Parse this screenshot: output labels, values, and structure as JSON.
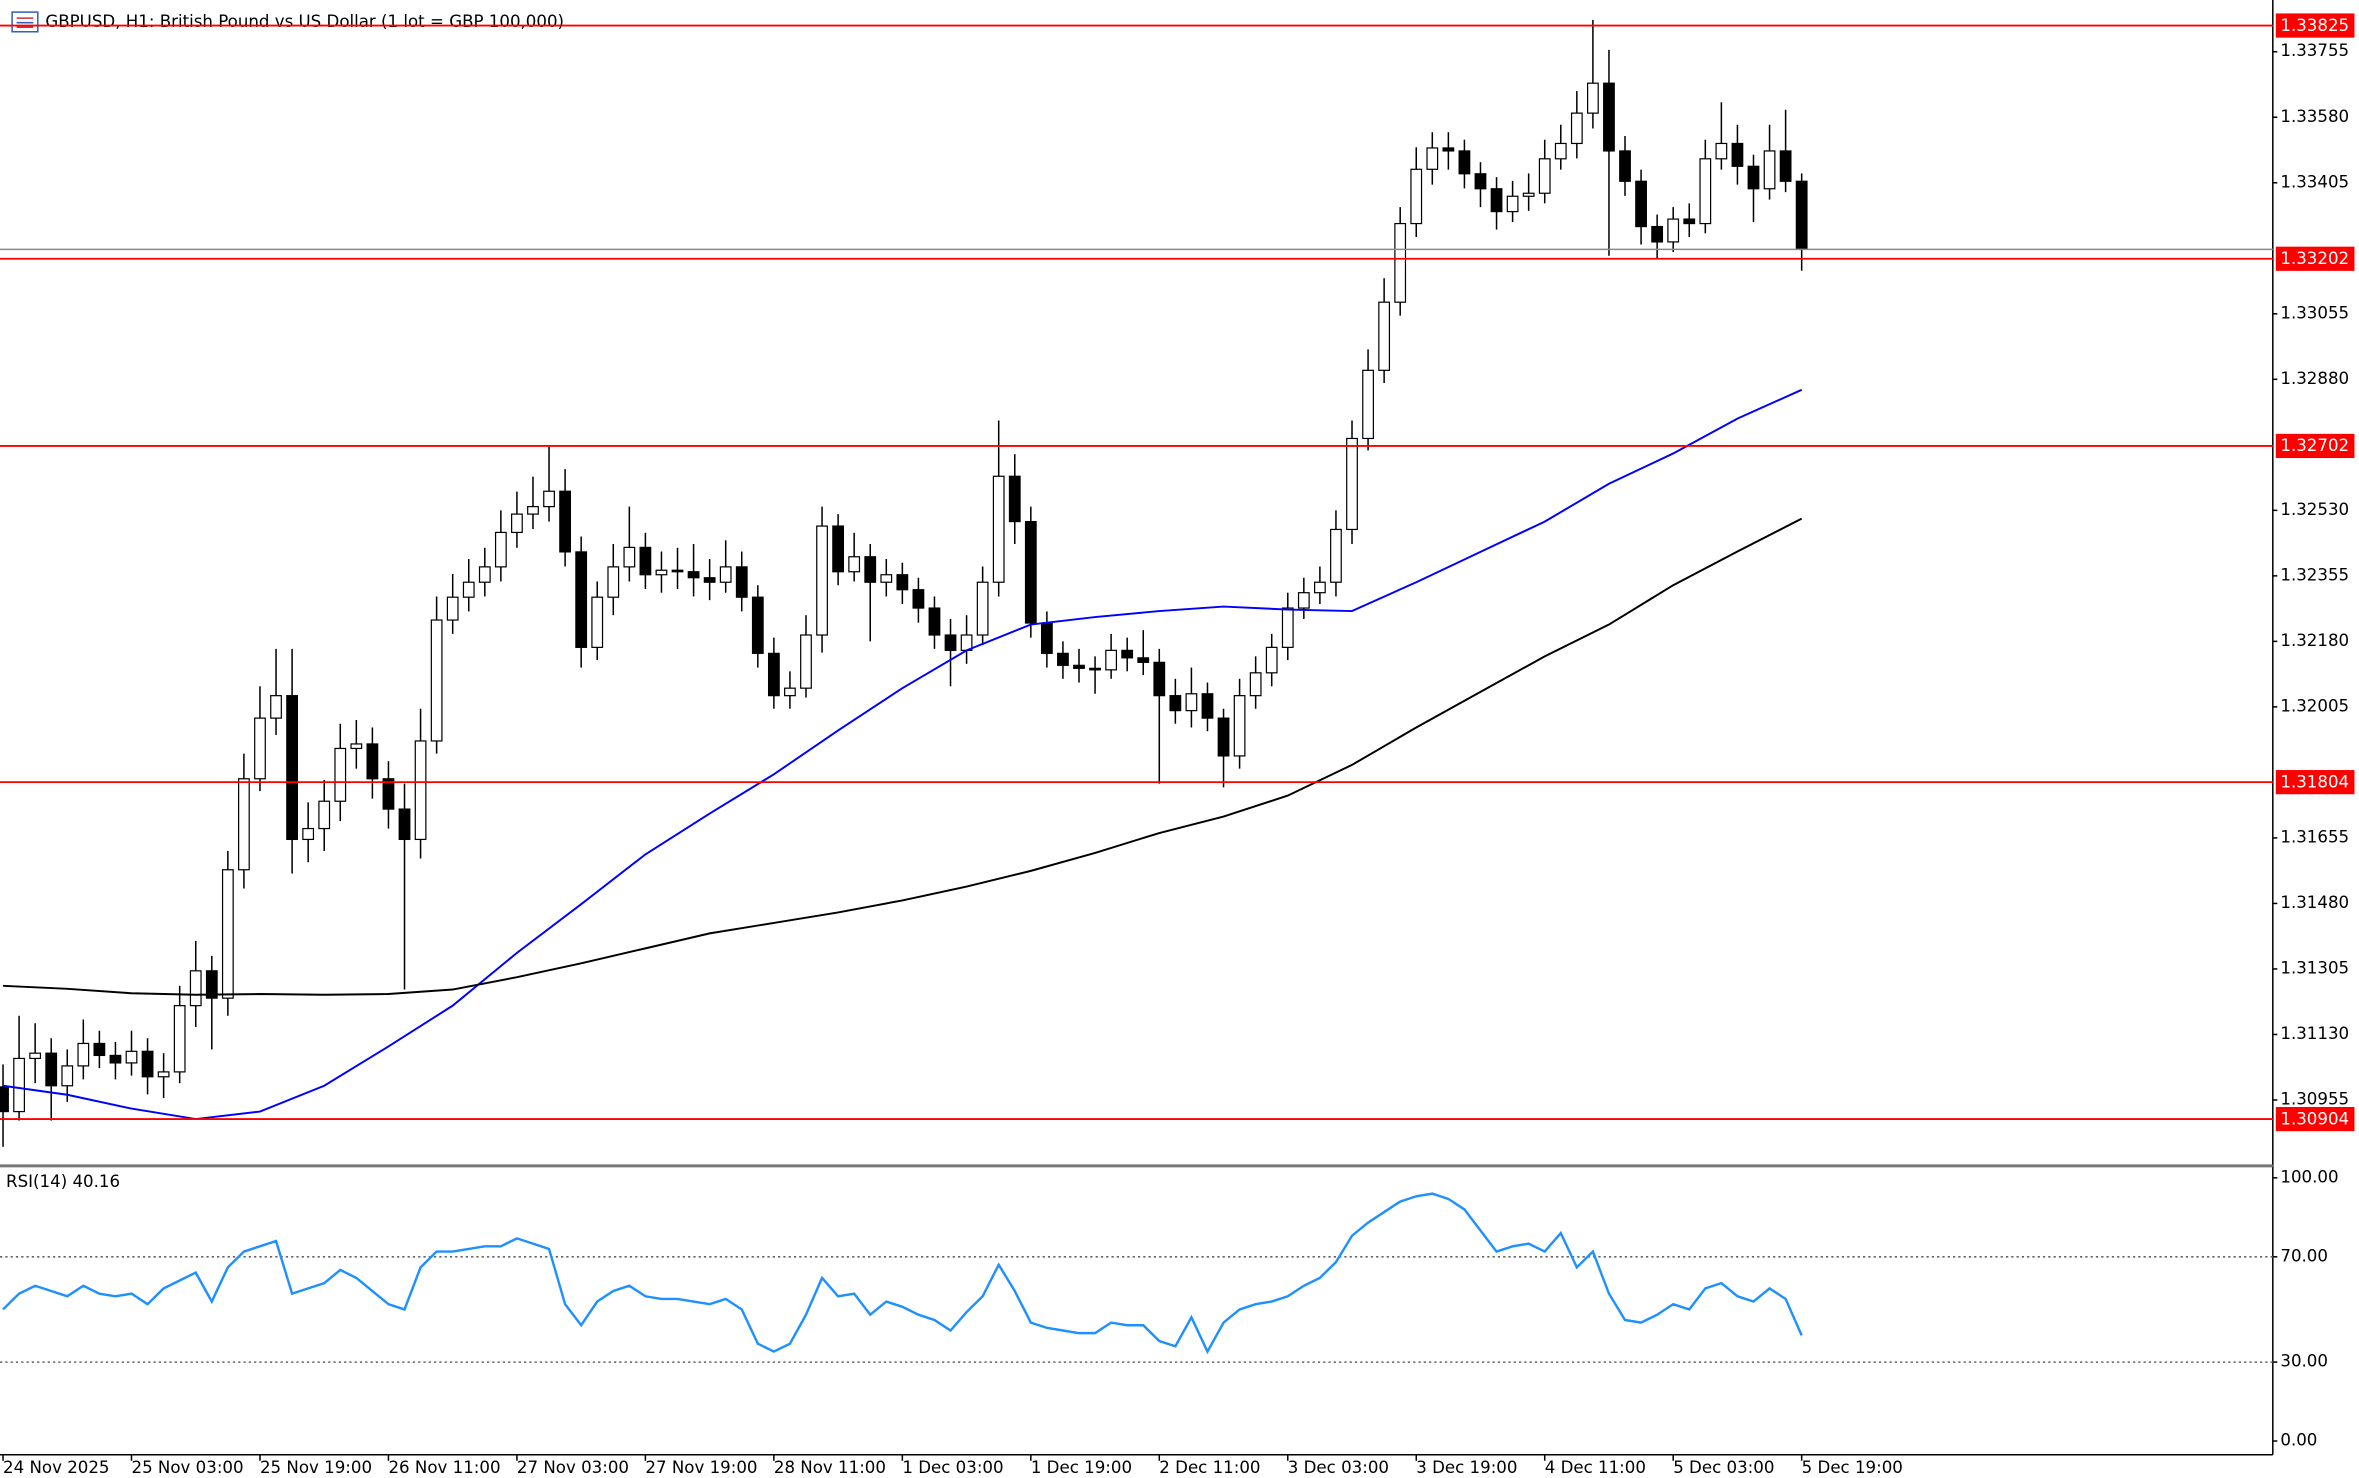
{
  "chart_data": [
    {
      "type": "candlestick",
      "title": "GBPUSD, H1:  British Pound vs US Dollar (1 lot = GBP 100,000)",
      "categories": [
        "24 Nov 2025",
        null,
        null,
        null,
        null,
        null,
        null,
        null,
        "25 Nov 03:00",
        null,
        null,
        null,
        null,
        null,
        null,
        null,
        "25 Nov 19:00",
        null,
        null,
        null,
        null,
        null,
        null,
        null,
        "26 Nov 11:00",
        null,
        null,
        null,
        null,
        null,
        null,
        null,
        "27 Nov 03:00",
        null,
        null,
        null,
        null,
        null,
        null,
        null,
        "27 Nov 19:00",
        null,
        null,
        null,
        null,
        null,
        null,
        null,
        "28 Nov 11:00",
        null,
        null,
        null,
        null,
        null,
        null,
        null,
        "1 Dec 03:00",
        null,
        null,
        null,
        null,
        null,
        null,
        null,
        "1 Dec 19:00",
        null,
        null,
        null,
        null,
        null,
        null,
        null,
        "2 Dec 11:00",
        null,
        null,
        null,
        null,
        null,
        null,
        null,
        "3 Dec 03:00",
        null,
        null,
        null,
        null,
        null,
        null,
        null,
        "3 Dec 19:00",
        null,
        null,
        null,
        null,
        null,
        null,
        null,
        "4 Dec 11:00",
        null,
        null,
        null,
        null,
        null,
        null,
        null,
        "5 Dec 03:00",
        null,
        null,
        null,
        null,
        null,
        null,
        null,
        "5 Dec 19:00"
      ],
      "open": [
        1.3099,
        1.30924,
        1.31066,
        1.3108,
        1.30993,
        1.31046,
        1.31106,
        1.31074,
        1.31054,
        1.31085,
        1.31017,
        1.3103,
        1.31207,
        1.313,
        1.31227,
        1.3157,
        1.31813,
        1.31975,
        1.32035,
        1.31651,
        1.3168,
        1.31753,
        1.31894,
        1.31906,
        1.31813,
        1.31732,
        1.31651,
        1.31914,
        1.32237,
        1.32298,
        1.32338,
        1.32379,
        1.32471,
        1.3252,
        1.3254,
        1.32581,
        1.32419,
        1.32164,
        1.32298,
        1.32379,
        1.32431,
        1.32358,
        1.3237,
        1.32366,
        1.3235,
        1.32338,
        1.32379,
        1.32298,
        1.32148,
        1.32035,
        1.32055,
        1.32197,
        1.32488,
        1.32366,
        1.32406,
        1.32338,
        1.32358,
        1.32318,
        1.32269,
        1.32197,
        1.32156,
        1.32197,
        1.32338,
        1.32621,
        1.325,
        1.32229,
        1.32148,
        1.32116,
        1.32108,
        1.32104,
        1.32156,
        1.32136,
        1.32124,
        1.32035,
        1.31995,
        1.3204,
        1.31975,
        1.31874,
        1.32035,
        1.32096,
        1.32164,
        1.32269,
        1.3231,
        1.32338,
        1.32479,
        1.32722,
        1.32904,
        1.33086,
        1.33296,
        1.33441,
        1.33498,
        1.3349,
        1.33429,
        1.33389,
        1.33328,
        1.33369,
        1.33377,
        1.33469,
        1.3351,
        1.33591,
        1.33671,
        1.3349,
        1.33409,
        1.33288,
        1.33247,
        1.33308,
        1.33296,
        1.33469,
        1.3351,
        1.33449,
        1.33389,
        1.3349,
        1.33409
      ],
      "high": [
        1.3105,
        1.3118,
        1.3116,
        1.3112,
        1.3109,
        1.3117,
        1.3114,
        1.3111,
        1.3114,
        1.3112,
        1.3108,
        1.3126,
        1.3138,
        1.3134,
        1.3162,
        1.3188,
        1.3206,
        1.3216,
        1.3216,
        1.3175,
        1.3181,
        1.3196,
        1.3197,
        1.3195,
        1.3186,
        1.318,
        1.32,
        1.323,
        1.3236,
        1.324,
        1.3243,
        1.3253,
        1.3258,
        1.3262,
        1.327,
        1.3264,
        1.3246,
        1.3234,
        1.3244,
        1.3254,
        1.3247,
        1.3242,
        1.3243,
        1.3244,
        1.324,
        1.3245,
        1.3242,
        1.3233,
        1.3219,
        1.321,
        1.3225,
        1.3254,
        1.3252,
        1.3247,
        1.3244,
        1.324,
        1.3239,
        1.3235,
        1.323,
        1.3224,
        1.3225,
        1.3238,
        1.3277,
        1.3268,
        1.3254,
        1.3226,
        1.3218,
        1.3216,
        1.3214,
        1.322,
        1.3219,
        1.3221,
        1.3216,
        1.3208,
        1.3211,
        1.3207,
        1.32,
        1.3208,
        1.3214,
        1.322,
        1.3231,
        1.3235,
        1.3238,
        1.3253,
        1.3277,
        1.3296,
        1.3315,
        1.3334,
        1.335,
        1.3354,
        1.3354,
        1.3352,
        1.3346,
        1.3342,
        1.3341,
        1.3343,
        1.3352,
        1.3356,
        1.3365,
        1.3384,
        1.3376,
        1.3353,
        1.3344,
        1.3332,
        1.3334,
        1.3335,
        1.3352,
        1.3362,
        1.3356,
        1.3348,
        1.3356,
        1.336,
        1.3343
      ],
      "low": [
        1.3083,
        1.309,
        1.31,
        1.309,
        1.3095,
        1.3101,
        1.3104,
        1.3101,
        1.3102,
        1.3097,
        1.3096,
        1.31,
        1.3115,
        1.3109,
        1.3118,
        1.3152,
        1.3178,
        1.3193,
        1.3156,
        1.3159,
        1.3162,
        1.317,
        1.3184,
        1.3176,
        1.3168,
        1.3125,
        1.316,
        1.3188,
        1.322,
        1.3226,
        1.323,
        1.3234,
        1.3243,
        1.3248,
        1.325,
        1.3238,
        1.3211,
        1.3213,
        1.3225,
        1.3234,
        1.3232,
        1.3231,
        1.3232,
        1.323,
        1.3229,
        1.3231,
        1.3226,
        1.3211,
        1.32,
        1.32,
        1.3203,
        1.3215,
        1.3233,
        1.3234,
        1.3218,
        1.323,
        1.3228,
        1.3223,
        1.3216,
        1.3206,
        1.3212,
        1.3217,
        1.323,
        1.3244,
        1.3219,
        1.3211,
        1.3208,
        1.3207,
        1.3204,
        1.3208,
        1.321,
        1.3209,
        1.318,
        1.3196,
        1.3195,
        1.3194,
        1.3179,
        1.3184,
        1.32,
        1.3206,
        1.3213,
        1.3224,
        1.3228,
        1.323,
        1.3244,
        1.3269,
        1.3287,
        1.3305,
        1.3326,
        1.334,
        1.3344,
        1.3339,
        1.3334,
        1.3328,
        1.333,
        1.3333,
        1.3335,
        1.3344,
        1.3347,
        1.3355,
        1.3321,
        1.3337,
        1.3324,
        1.332,
        1.3322,
        1.3326,
        1.3327,
        1.3344,
        1.334,
        1.333,
        1.3336,
        1.3338,
        1.3317
      ],
      "close": [
        1.30924,
        1.31066,
        1.3108,
        1.30993,
        1.31046,
        1.31106,
        1.31074,
        1.31054,
        1.31085,
        1.31017,
        1.3103,
        1.31207,
        1.313,
        1.31227,
        1.3157,
        1.31813,
        1.31975,
        1.32035,
        1.31651,
        1.3168,
        1.31753,
        1.31894,
        1.31906,
        1.31813,
        1.31732,
        1.31651,
        1.31914,
        1.32237,
        1.32298,
        1.32338,
        1.32379,
        1.32471,
        1.3252,
        1.3254,
        1.32581,
        1.32419,
        1.32164,
        1.32298,
        1.32379,
        1.32431,
        1.32358,
        1.3237,
        1.32366,
        1.3235,
        1.32338,
        1.32379,
        1.32298,
        1.32148,
        1.32035,
        1.32055,
        1.32197,
        1.32488,
        1.32366,
        1.32406,
        1.32338,
        1.32358,
        1.32318,
        1.32269,
        1.32197,
        1.32156,
        1.32197,
        1.32338,
        1.32621,
        1.325,
        1.32229,
        1.32148,
        1.32116,
        1.32108,
        1.32104,
        1.32156,
        1.32136,
        1.32124,
        1.32035,
        1.31995,
        1.3204,
        1.31975,
        1.31874,
        1.32035,
        1.32096,
        1.32164,
        1.32269,
        1.3231,
        1.32338,
        1.32479,
        1.32722,
        1.32904,
        1.33086,
        1.33296,
        1.33441,
        1.33498,
        1.3349,
        1.33429,
        1.33389,
        1.33328,
        1.33369,
        1.33377,
        1.33469,
        1.3351,
        1.33591,
        1.33671,
        1.3349,
        1.33409,
        1.33288,
        1.33247,
        1.33308,
        1.33296,
        1.33469,
        1.3351,
        1.33449,
        1.33389,
        1.3349,
        1.33409,
        1.33227
      ],
      "ma_lines": [
        {
          "color": "#0000ff",
          "x": [
            0,
            4,
            8,
            12,
            16,
            20,
            24,
            28,
            32,
            36,
            40,
            44,
            48,
            52,
            56,
            60,
            64,
            68,
            72,
            76,
            80,
            84,
            88,
            92,
            96,
            100,
            104,
            108,
            112
          ],
          "values": [
            1.30993,
            1.30969,
            1.30932,
            1.30904,
            1.30924,
            1.30993,
            1.31098,
            1.31207,
            1.31348,
            1.31478,
            1.31611,
            1.3172,
            1.31825,
            1.31942,
            1.32055,
            1.32156,
            1.32225,
            1.32245,
            1.32261,
            1.32273,
            1.32265,
            1.32261,
            1.32338,
            1.32419,
            1.325,
            1.32601,
            1.32682,
            1.32775,
            1.32852
          ]
        },
        {
          "color": "#000000",
          "x": [
            0,
            4,
            8,
            12,
            16,
            20,
            24,
            28,
            32,
            36,
            40,
            44,
            48,
            52,
            56,
            60,
            64,
            68,
            72,
            76,
            80,
            84,
            88,
            92,
            96,
            100,
            104,
            108,
            112
          ],
          "values": [
            1.3126,
            1.31252,
            1.3124,
            1.31236,
            1.31238,
            1.31236,
            1.31238,
            1.3125,
            1.31283,
            1.3132,
            1.3136,
            1.314,
            1.31428,
            1.31456,
            1.31488,
            1.31525,
            1.31567,
            1.31615,
            1.31668,
            1.31712,
            1.31768,
            1.3185,
            1.3195,
            1.32045,
            1.3214,
            1.32225,
            1.3233,
            1.3242,
            1.32508
          ]
        }
      ],
      "levels": [
        1.33825,
        1.33202,
        1.32702,
        1.31804,
        1.30904
      ],
      "level_color": "#ff0000",
      "ylim": [
        1.30783,
        1.33873
      ],
      "yticks": [
        1.33755,
        {
          "value": 1.3358,
          "label": "1.33580"
        },
        1.33405,
        1.33055,
        {
          "value": 1.3288,
          "label": "1.32880"
        },
        {
          "value": 1.3253,
          "label": "1.32530"
        },
        1.32355,
        {
          "value": 1.3218,
          "label": "1.32180"
        },
        1.32005,
        1.31655,
        {
          "value": 1.3148,
          "label": "1.31480"
        },
        1.31305,
        {
          "value": 1.3113,
          "label": "1.31130"
        },
        1.30955
      ]
    },
    {
      "type": "line",
      "title": "RSI(14) 40.16",
      "color": "#1e90ff",
      "values": [
        50,
        56,
        59,
        57,
        55,
        59,
        56,
        55,
        56,
        52,
        58,
        61,
        64,
        53,
        66,
        72,
        74,
        76,
        56,
        58,
        60,
        65,
        62,
        57,
        52,
        50,
        66,
        72,
        72,
        73,
        74,
        74,
        77,
        75,
        73,
        52,
        44,
        53,
        57,
        59,
        55,
        54,
        54,
        53,
        52,
        54,
        50,
        37,
        34,
        37,
        48,
        62,
        55,
        56,
        48,
        53,
        51,
        48,
        46,
        42,
        49,
        55,
        67,
        57,
        45,
        43,
        42,
        41,
        41,
        45,
        44,
        44,
        38,
        36,
        47,
        34,
        45,
        50,
        52,
        53,
        55,
        59,
        62,
        68,
        78,
        83,
        87,
        91,
        93,
        94,
        92,
        88,
        80,
        72,
        74,
        75,
        72,
        79,
        66,
        72,
        56,
        46,
        45,
        48,
        52,
        50,
        58,
        60,
        55,
        53,
        58,
        54,
        40.16
      ],
      "ylim": [
        -5.2,
        103.4
      ],
      "yticks": [
        {
          "value": 100,
          "label": "100.00"
        },
        {
          "value": 70,
          "label": "70.00"
        },
        {
          "value": 30,
          "label": "30.00"
        },
        {
          "value": 0,
          "label": "0.00"
        }
      ],
      "levels": [
        70,
        30
      ]
    }
  ]
}
